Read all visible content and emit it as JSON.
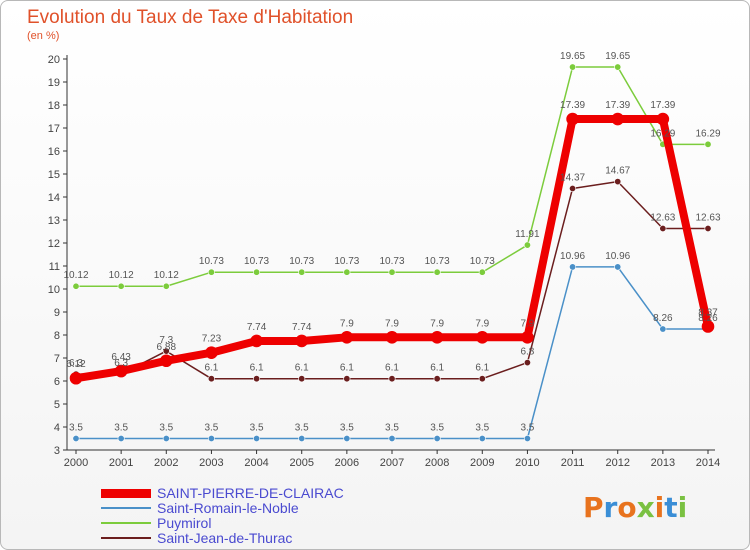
{
  "title": "Evolution du Taux de Taxe d'Habitation",
  "subtitle": "(en %)",
  "logo": {
    "text": "Proxiti"
  },
  "chart_data": {
    "type": "line",
    "title": "Evolution du Taux de Taxe d'Habitation",
    "ylabel": "(en %)",
    "xlabel": "",
    "ylim": [
      3,
      20
    ],
    "yticks": [
      3,
      4,
      5,
      6,
      7,
      8,
      9,
      10,
      11,
      12,
      13,
      14,
      15,
      16,
      17,
      18,
      19,
      20
    ],
    "grid": false,
    "legend_position": "bottom-left",
    "categories": [
      "2000",
      "2001",
      "2002",
      "2003",
      "2004",
      "2005",
      "2006",
      "2007",
      "2008",
      "2009",
      "2010",
      "2011",
      "2012",
      "2013",
      "2014"
    ],
    "series": [
      {
        "name": "SAINT-PIERRE-DE-CLAIRAC",
        "color": "#ee0000",
        "line_width": 8,
        "values": [
          6.12,
          6.43,
          6.88,
          7.23,
          7.74,
          7.74,
          7.9,
          7.9,
          7.9,
          7.9,
          7.9,
          17.39,
          17.39,
          17.39,
          8.37
        ],
        "labels": [
          "6.12",
          "6.43",
          "6.88",
          "7.23",
          "7.74",
          "7.74",
          "7.9",
          "7.9",
          "7.9",
          "7.9",
          "7.9",
          "17.39",
          "17.39",
          "17.39",
          "8.37"
        ]
      },
      {
        "name": "Saint-Romain-le-Noble",
        "color": "#4a90c8",
        "line_width": 1.5,
        "values": [
          3.5,
          3.5,
          3.5,
          3.5,
          3.5,
          3.5,
          3.5,
          3.5,
          3.5,
          3.5,
          3.5,
          10.96,
          10.96,
          8.26,
          8.26
        ],
        "labels": [
          "3.5",
          "3.5",
          "3.5",
          "3.5",
          "3.5",
          "3.5",
          "3.5",
          "3.5",
          "3.5",
          "3.5",
          "3.5",
          "10.96",
          "10.96",
          "8.26",
          "8.26"
        ]
      },
      {
        "name": "Puymirol",
        "color": "#7ccc3c",
        "line_width": 1.5,
        "values": [
          10.12,
          10.12,
          10.12,
          10.73,
          10.73,
          10.73,
          10.73,
          10.73,
          10.73,
          10.73,
          11.91,
          19.65,
          19.65,
          16.29,
          16.29
        ],
        "labels": [
          "10.12",
          "10.12",
          "10.12",
          "10.73",
          "10.73",
          "10.73",
          "10.73",
          "10.73",
          "10.73",
          "10.73",
          "11.91",
          "19.65",
          "19.65",
          "16.29",
          "16.29"
        ]
      },
      {
        "name": "Saint-Jean-de-Thurac",
        "color": "#6b1e1e",
        "line_width": 1.5,
        "values": [
          6.3,
          6.3,
          7.3,
          6.1,
          6.1,
          6.1,
          6.1,
          6.1,
          6.1,
          6.1,
          6.8,
          14.37,
          14.67,
          12.63,
          12.63
        ],
        "labels": [
          "6.3",
          "6.3",
          "7.3",
          "6.1",
          "6.1",
          "6.1",
          "6.1",
          "6.1",
          "6.1",
          "6.1",
          "6.8",
          "14.37",
          "14.67",
          "12.63",
          "12.63"
        ]
      }
    ]
  }
}
